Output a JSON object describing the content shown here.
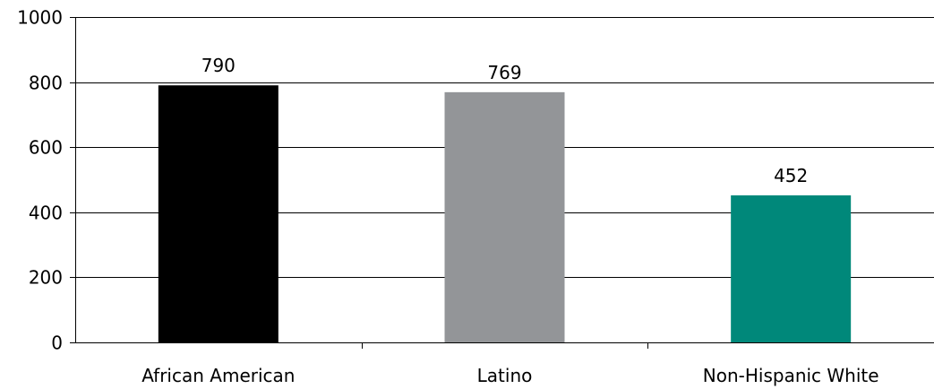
{
  "chart_data": {
    "type": "bar",
    "categories": [
      "African American",
      "Latino",
      "Non-Hispanic White"
    ],
    "values": [
      790,
      769,
      452
    ],
    "data_labels": [
      "790",
      "769",
      "452"
    ],
    "colors": [
      "#000000",
      "#939598",
      "#00887a"
    ],
    "title": "",
    "xlabel": "",
    "ylabel": "",
    "ylim": [
      0,
      1000
    ],
    "yticks": [
      0,
      200,
      400,
      600,
      800,
      1000
    ],
    "ytick_labels": [
      "0",
      "200",
      "400",
      "600",
      "800",
      "1000"
    ],
    "grid": true,
    "legend": "none"
  }
}
